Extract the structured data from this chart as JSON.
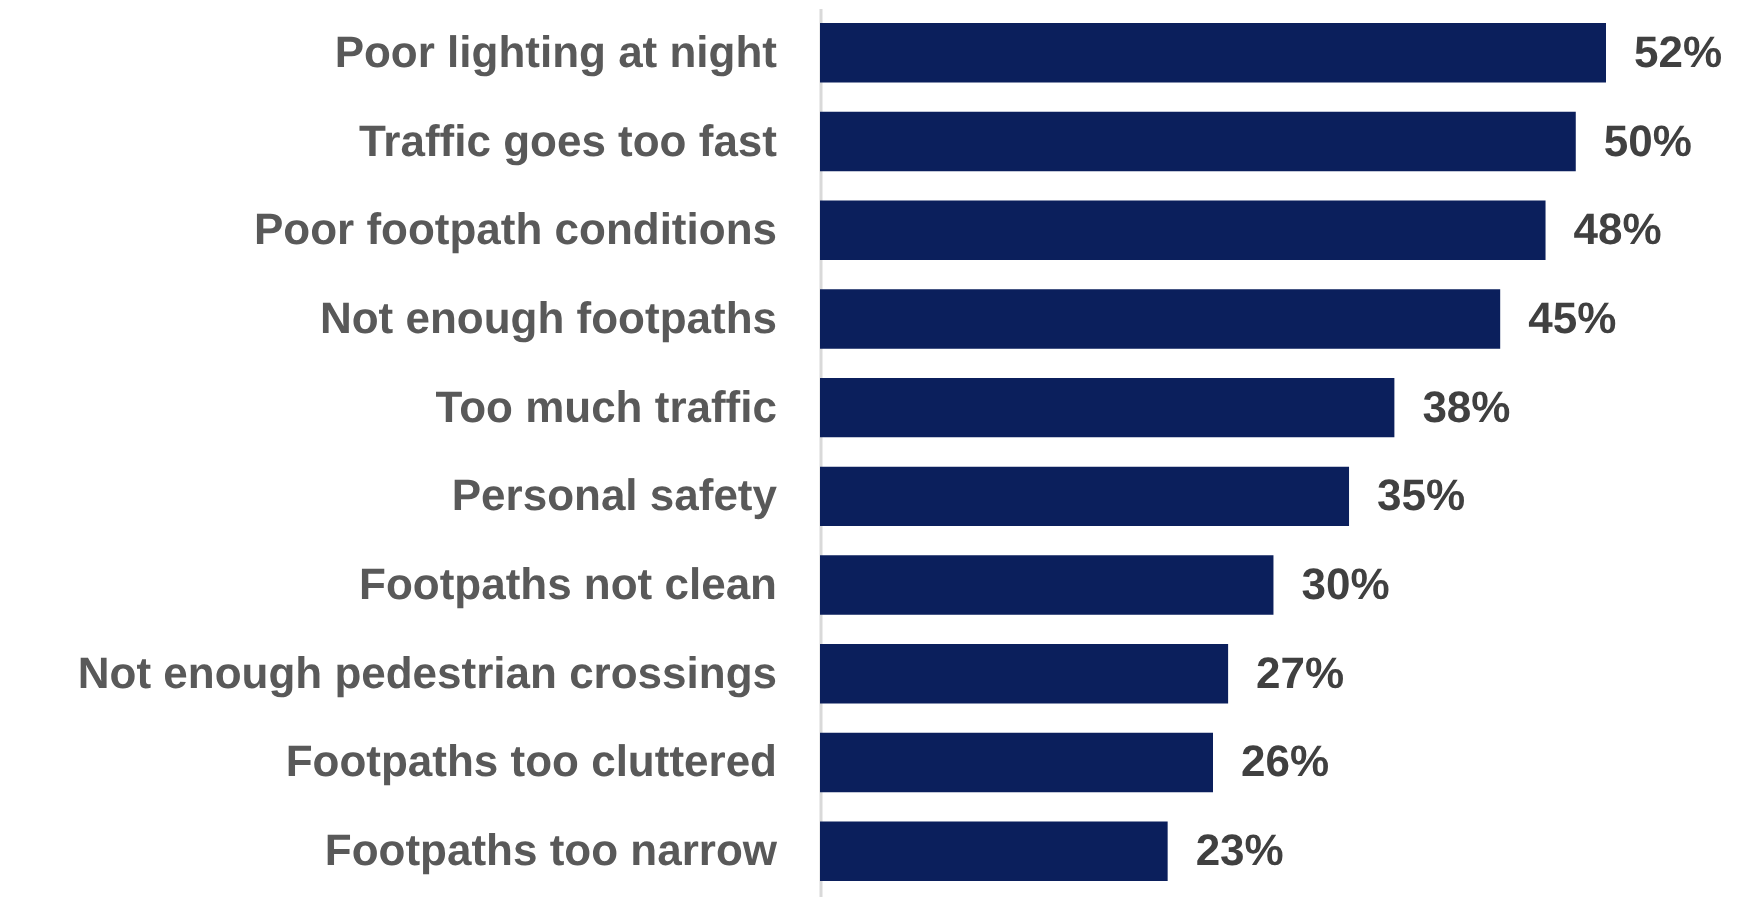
{
  "chart_data": {
    "type": "bar",
    "orientation": "horizontal",
    "categories": [
      "Poor lighting at night",
      "Traffic goes too fast",
      "Poor footpath conditions",
      "Not enough footpaths",
      "Too much traffic",
      "Personal safety",
      "Footpaths not clean",
      "Not enough pedestrian crossings",
      "Footpaths too cluttered",
      "Footpaths too narrow"
    ],
    "values": [
      52,
      50,
      48,
      45,
      38,
      35,
      30,
      27,
      26,
      23
    ],
    "value_labels": [
      "52%",
      "50%",
      "48%",
      "45%",
      "38%",
      "35%",
      "30%",
      "27%",
      "26%",
      "23%"
    ],
    "color": "#0b1f5c"
  }
}
